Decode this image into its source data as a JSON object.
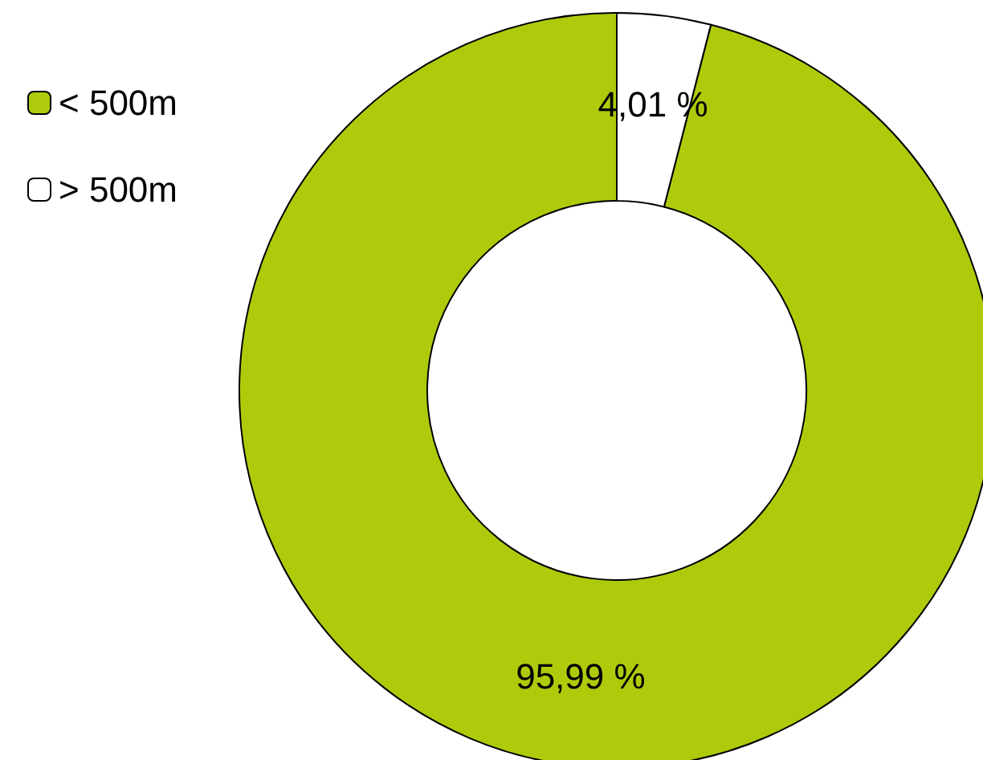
{
  "chart_data": {
    "type": "donut",
    "categories": [
      "< 500m",
      "> 500m"
    ],
    "values": [
      95.99,
      4.01
    ],
    "colors": [
      "#afca0b",
      "#ffffff"
    ],
    "value_labels": [
      "95,99 %",
      "4,01 %"
    ],
    "legend": "top left"
  }
}
